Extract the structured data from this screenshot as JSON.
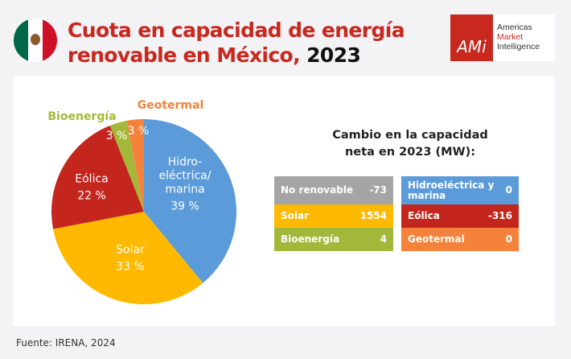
{
  "header": {
    "title_line1": "Cuota en capacidad de energía",
    "title_line2": "renovable en México,",
    "title_year": "2023"
  },
  "logo": {
    "mark": "AMi",
    "line1": "Americas",
    "line2": "Market",
    "line3": "Intelligence"
  },
  "flag_colors": [
    "#006847",
    "#ffffff",
    "#ce1126"
  ],
  "chart_data": {
    "type": "pie",
    "start": "top",
    "direction": "clockwise",
    "slices": [
      {
        "label": "Hidro-\neléctrica/\nmarina",
        "value": 39,
        "value_label": "39 %",
        "color": "#5b9bd9"
      },
      {
        "label": "Solar",
        "value": 33,
        "value_label": "33 %",
        "color": "#ffb900"
      },
      {
        "label": "Eólica",
        "value": 22,
        "value_label": "22 %",
        "color": "#c4261d"
      },
      {
        "label": "Bioenergía",
        "value": 3,
        "value_label": "3 %",
        "color": "#a3b83b"
      },
      {
        "label": "Geotermal",
        "value": 3,
        "value_label": "3 %",
        "color": "#f5823a"
      }
    ]
  },
  "table": {
    "title_line1": "Cambio en la capacidad",
    "title_line2": "neta en 2023 (MW):",
    "left": [
      {
        "label": "No renovable",
        "value": "-73",
        "color": "#a6a5a6"
      },
      {
        "label": "Solar",
        "value": "1554",
        "color": "#ffb900"
      },
      {
        "label": "Bioenergía",
        "value": "4",
        "color": "#a3b83b"
      }
    ],
    "right": [
      {
        "label": "Hidroeléctrica y marina",
        "value": "0",
        "color": "#5b9bd9"
      },
      {
        "label": "Eólica",
        "value": "-316",
        "color": "#c4261d"
      },
      {
        "label": "Geotermal",
        "value": "0",
        "color": "#f5823a"
      }
    ]
  },
  "footer": {
    "source": "Fuente: IRENA, 2024"
  }
}
